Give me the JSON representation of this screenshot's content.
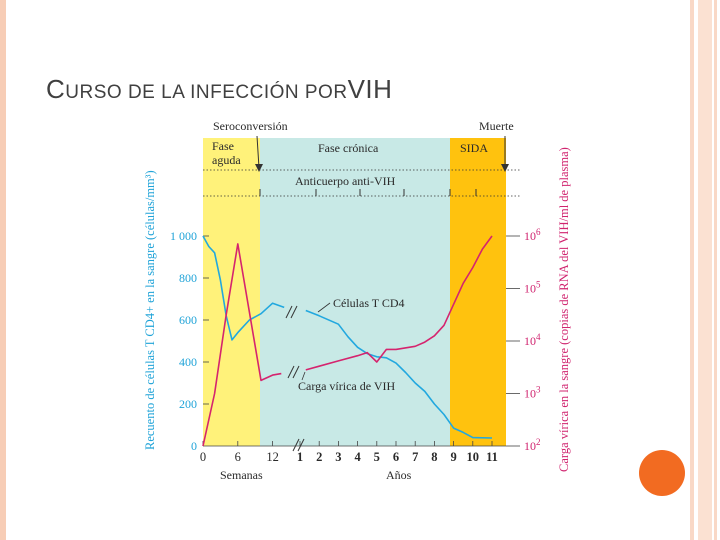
{
  "slide": {
    "title_cap": "C",
    "title_small": "URSO DE LA INFECCIÓN POR",
    "title_big": "VIH"
  },
  "colors": {
    "acute": "#fff27a",
    "chronic": "#c8e9e6",
    "aids": "#ffc20e",
    "cd4": "#22a8df",
    "viral": "#d5246e",
    "accent_dot": "#f26b21"
  },
  "chart_data": {
    "type": "line",
    "title": "",
    "phases": {
      "acute": "Fase aguda",
      "chronic": "Fase crónica",
      "aids": "SIDA"
    },
    "top_labels": {
      "seroconversion": "Seroconversión",
      "death": "Muerte",
      "antibody": "Anticuerpo anti-VIH"
    },
    "ylabel_left": "Recuento de células T CD4+ en la sangre (células/mm³)",
    "ylabel_right": "Carga vírica en la sangre (copias de RNA del VIH/ml de plasma)",
    "xlabel_weeks": "Semanas",
    "xlabel_years": "Años",
    "y_left_ticks": [
      "1 000",
      "800",
      "600",
      "400",
      "200",
      "0"
    ],
    "y_left_values": [
      1000,
      800,
      600,
      400,
      200,
      0
    ],
    "y_left_range": [
      0,
      1000
    ],
    "y_right_ticks": [
      {
        "base": "10",
        "exp": "6",
        "log": 6
      },
      {
        "base": "10",
        "exp": "5",
        "log": 5
      },
      {
        "base": "10",
        "exp": "4",
        "log": 4
      },
      {
        "base": "10",
        "exp": "3",
        "log": 3
      },
      {
        "base": "10",
        "exp": "2",
        "log": 2
      }
    ],
    "y_right_range_log": [
      2,
      6
    ],
    "x_week_ticks": [
      {
        "label": "0",
        "value": 0
      },
      {
        "label": "6",
        "value": 6
      },
      {
        "label": "12",
        "value": 12
      }
    ],
    "x_year_ticks": [
      {
        "label": "1",
        "value": 1
      },
      {
        "label": "2",
        "value": 2
      },
      {
        "label": "3",
        "value": 3
      },
      {
        "label": "4",
        "value": 4
      },
      {
        "label": "5",
        "value": 5
      },
      {
        "label": "6",
        "value": 6
      },
      {
        "label": "7",
        "value": 7
      },
      {
        "label": "8",
        "value": 8
      },
      {
        "label": "9",
        "value": 9
      },
      {
        "label": "10",
        "value": 10
      },
      {
        "label": "11",
        "value": 11
      }
    ],
    "series": [
      {
        "name": "Células T CD4",
        "axis": "left",
        "segments": [
          [
            [
              "w",
              0,
              1000
            ],
            [
              "w",
              1,
              950
            ],
            [
              "w",
              2,
              920
            ],
            [
              "w",
              3,
              790
            ],
            [
              "w",
              4,
              620
            ],
            [
              "w",
              5,
              505
            ],
            [
              "w",
              6,
              540
            ],
            [
              "w",
              8,
              600
            ],
            [
              "w",
              10,
              630
            ],
            [
              "w",
              12,
              680
            ],
            [
              "w",
              14,
              660
            ]
          ],
          [
            [
              "y",
              1.3,
              645
            ],
            [
              "y",
              2,
              620
            ],
            [
              "y",
              3,
              580
            ],
            [
              "y",
              3.5,
              520
            ],
            [
              "y",
              4,
              470
            ],
            [
              "y",
              4.5,
              440
            ],
            [
              "y",
              5,
              425
            ],
            [
              "y",
              5.5,
              420
            ],
            [
              "y",
              6,
              395
            ],
            [
              "y",
              6.5,
              350
            ],
            [
              "y",
              7,
              300
            ],
            [
              "y",
              7.5,
              260
            ],
            [
              "y",
              8,
              200
            ],
            [
              "y",
              8.5,
              150
            ],
            [
              "y",
              9,
              85
            ],
            [
              "y",
              9.5,
              65
            ],
            [
              "y",
              10,
              40
            ],
            [
              "y",
              11,
              38
            ]
          ]
        ]
      },
      {
        "name": "Carga vírica de VIH",
        "axis": "right",
        "segments": [
          [
            [
              "w",
              0,
              2.0
            ],
            [
              "w",
              2,
              3.0
            ],
            [
              "w",
              4,
              4.5
            ],
            [
              "w",
              6,
              5.85
            ],
            [
              "w",
              7,
              5.2
            ],
            [
              "w",
              10,
              3.25
            ],
            [
              "w",
              12,
              3.35
            ],
            [
              "w",
              13.5,
              3.38
            ]
          ],
          [
            [
              "y",
              1.3,
              3.45
            ],
            [
              "y",
              2,
              3.52
            ],
            [
              "y",
              3,
              3.62
            ],
            [
              "y",
              4,
              3.72
            ],
            [
              "y",
              4.5,
              3.78
            ],
            [
              "y",
              5,
              3.6
            ],
            [
              "y",
              5.5,
              3.84
            ],
            [
              "y",
              6,
              3.84
            ],
            [
              "y",
              7,
              3.9
            ],
            [
              "y",
              7.5,
              3.98
            ],
            [
              "y",
              8,
              4.1
            ],
            [
              "y",
              8.5,
              4.3
            ],
            [
              "y",
              9,
              4.7
            ],
            [
              "y",
              9.5,
              5.1
            ],
            [
              "y",
              10,
              5.4
            ],
            [
              "y",
              10.5,
              5.75
            ],
            [
              "y",
              11,
              6.0
            ]
          ]
        ]
      }
    ],
    "annotations": {
      "cd4": "Células T CD4",
      "viral": "Carga vírica de VIH"
    }
  }
}
